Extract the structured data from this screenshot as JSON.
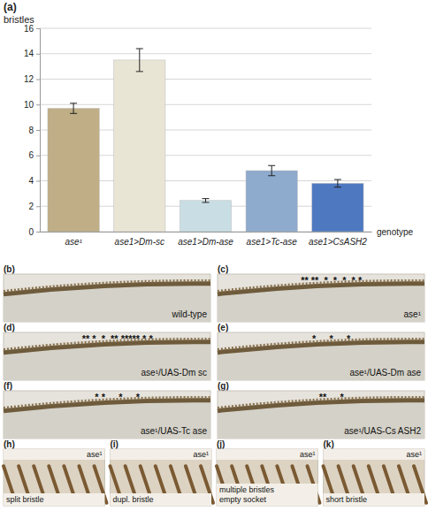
{
  "chart_data": {
    "type": "bar",
    "categories": [
      "ase¹",
      "ase1>Dm-sc",
      "ase1>Dm-ase",
      "ase1>Tc-ase",
      "ase1>CsASH2"
    ],
    "values": [
      9.7,
      13.5,
      2.45,
      4.8,
      3.8
    ],
    "errors": [
      0.4,
      0.9,
      0.15,
      0.4,
      0.3
    ],
    "colors": [
      "#bfae86",
      "#e9e5d5",
      "#c9dee4",
      "#8eaacd",
      "#4e79c1"
    ],
    "y_label": "bristles",
    "x_label": "genotype",
    "ylim": [
      0,
      16
    ],
    "yticks": [
      0,
      2,
      4,
      6,
      8,
      10,
      12,
      14,
      16
    ],
    "grid": true
  },
  "chart_panel": {
    "letter": "(a)"
  },
  "photo_panels": [
    {
      "letter": "(b)",
      "label": "wild-type"
    },
    {
      "letter": "(c)",
      "label": "ase¹",
      "asterisks": "** **  *  *  *  * *"
    },
    {
      "letter": "(d)",
      "label": "ase¹/UAS-Dm sc",
      "asterisks": "** *  *  ** ***** * *"
    },
    {
      "letter": "(e)",
      "label": "ase¹/UAS-Dm ase",
      "asterisks": "*     *     *"
    },
    {
      "letter": "(f)",
      "label": "ase¹/UAS-Tc ase",
      "asterisks": "* *     *     *"
    },
    {
      "letter": "(g)",
      "label": "ase¹/UAS-Cs ASH2",
      "asterisks": "**     *"
    },
    {
      "letter": "(h)",
      "label": [
        "split bristle"
      ],
      "genotype": "ase¹"
    },
    {
      "letter": "(i)",
      "label": [
        "dupl. bristle"
      ],
      "genotype": "ase¹"
    },
    {
      "letter": "(j)",
      "label": [
        "multiple bristles",
        "empty socket"
      ],
      "genotype": "ase¹"
    },
    {
      "letter": "(k)",
      "label": [
        "short bristle"
      ],
      "genotype": "ase¹"
    }
  ]
}
